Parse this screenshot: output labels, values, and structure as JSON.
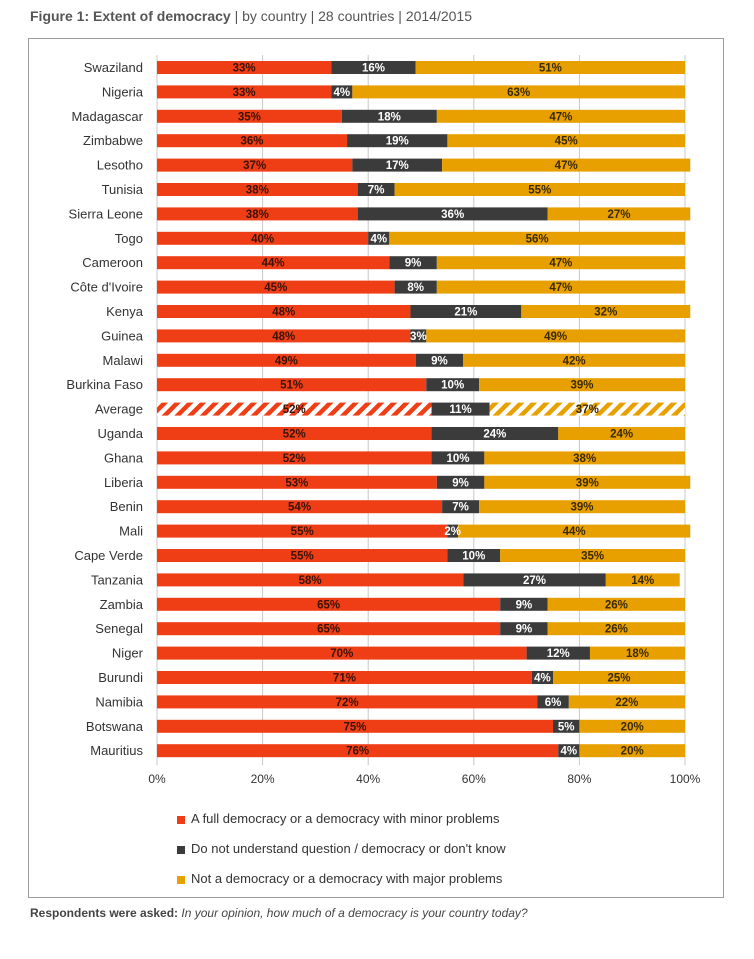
{
  "title": {
    "bold": "Figure 1: Extent of democracy",
    "rest": " | by country | 28 countries | 2014/2015"
  },
  "colors": {
    "full": "#ef3e15",
    "dontknow": "#3b3b3b",
    "not": "#e8a000"
  },
  "chart_data": {
    "type": "bar",
    "orientation": "horizontal",
    "stacked": "100%",
    "categories": [
      "Swaziland",
      "Nigeria",
      "Madagascar",
      "Zimbabwe",
      "Lesotho",
      "Tunisia",
      "Sierra Leone",
      "Togo",
      "Cameroon",
      "Côte d'Ivoire",
      "Kenya",
      "Guinea",
      "Malawi",
      "Burkina Faso",
      "Average",
      "Uganda",
      "Ghana",
      "Liberia",
      "Benin",
      "Mali",
      "Cape Verde",
      "Tanzania",
      "Zambia",
      "Senegal",
      "Niger",
      "Burundi",
      "Namibia",
      "Botswana",
      "Mauritius"
    ],
    "highlighted_category": "Average",
    "series": [
      {
        "name": "A full democracy or a democracy with minor problems",
        "color": "#ef3e15",
        "label_color": "#3a1208",
        "values": [
          33,
          33,
          35,
          36,
          37,
          38,
          38,
          40,
          44,
          45,
          48,
          48,
          49,
          51,
          52,
          52,
          52,
          53,
          54,
          55,
          55,
          58,
          65,
          65,
          70,
          71,
          72,
          75,
          76
        ]
      },
      {
        "name": "Do not understand question / democracy or don't know",
        "color": "#3b3b3b",
        "label_color": "#ffffff",
        "values": [
          16,
          4,
          18,
          19,
          17,
          7,
          36,
          4,
          9,
          8,
          21,
          3,
          9,
          10,
          11,
          24,
          10,
          9,
          7,
          2,
          10,
          27,
          9,
          9,
          12,
          4,
          6,
          5,
          4
        ]
      },
      {
        "name": "Not a democracy or a democracy with major problems",
        "color": "#e8a000",
        "label_color": "#3a2a00",
        "values": [
          51,
          63,
          47,
          45,
          47,
          55,
          27,
          56,
          47,
          47,
          32,
          49,
          42,
          39,
          37,
          24,
          38,
          39,
          39,
          44,
          35,
          14,
          26,
          26,
          18,
          25,
          22,
          20,
          20
        ]
      }
    ],
    "xlim": [
      0,
      100
    ],
    "x_ticks": [
      "0%",
      "20%",
      "40%",
      "60%",
      "80%",
      "100%"
    ],
    "grid": true,
    "legend_position": "bottom"
  },
  "footnote": {
    "bold": "Respondents were asked:",
    "italic": "In your opinion, how much of a democracy is your country today?"
  }
}
